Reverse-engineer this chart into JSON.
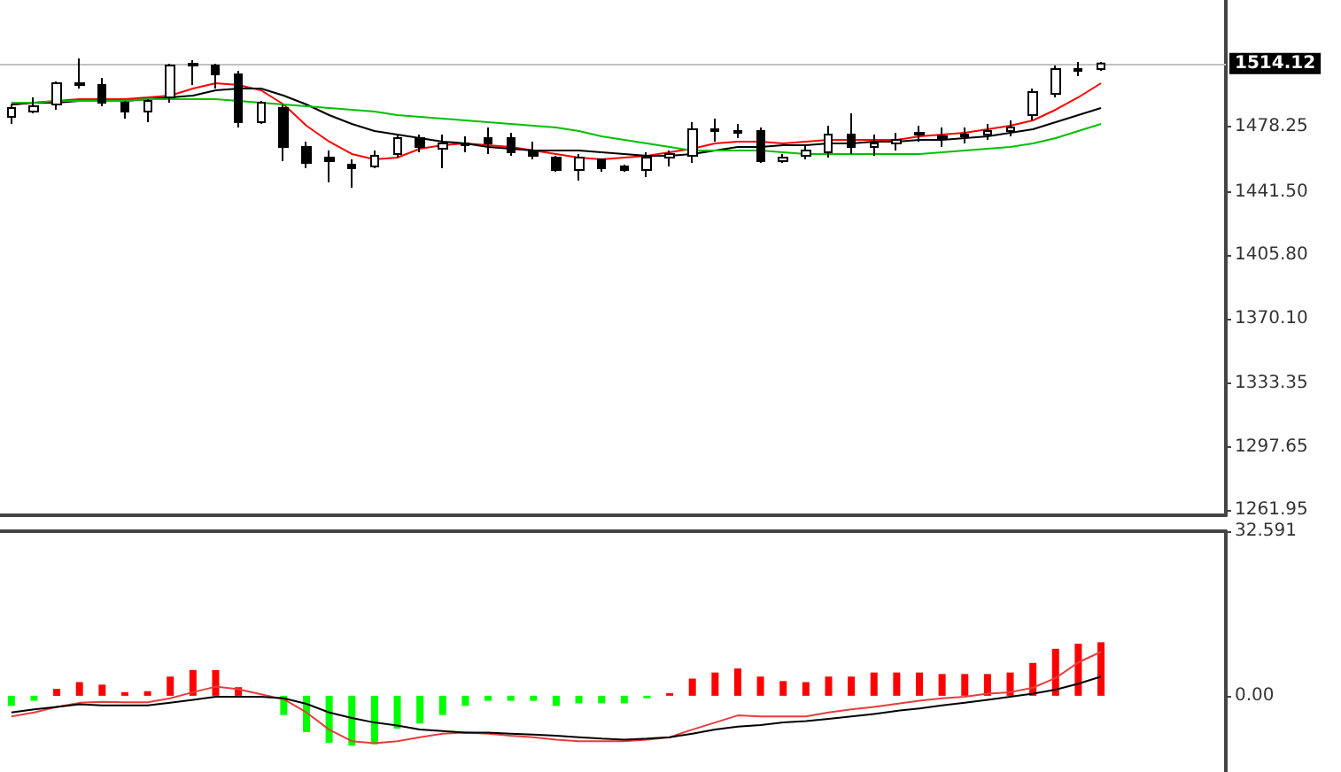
{
  "chart_data": [
    {
      "type": "candlestick",
      "categories": [
        null,
        null,
        null,
        null,
        null,
        null,
        null,
        null,
        null,
        null,
        null,
        null,
        null,
        null,
        null,
        null,
        null,
        null,
        null,
        null,
        null,
        null,
        null,
        null,
        null,
        null,
        null,
        null,
        null,
        null,
        null,
        null,
        null,
        null,
        null,
        null,
        null,
        null,
        null,
        null,
        null,
        null,
        null,
        null,
        null,
        null,
        null,
        null,
        null
      ],
      "ohlc": [
        [
          1484,
          1491,
          1480,
          1489
        ],
        [
          1487,
          1495,
          1486,
          1490
        ],
        [
          1491,
          1504,
          1488,
          1503
        ],
        [
          1503,
          1517,
          1500,
          1502
        ],
        [
          1502,
          1506,
          1490,
          1492
        ],
        [
          1492,
          1493,
          1483,
          1487
        ],
        [
          1487,
          1494,
          1481,
          1493
        ],
        [
          1495,
          1514,
          1492,
          1513
        ],
        [
          1513,
          1516,
          1502,
          1514
        ],
        [
          1513,
          1514,
          1500,
          1508
        ],
        [
          1508,
          1510,
          1478,
          1481
        ],
        [
          1481,
          1493,
          1480,
          1492
        ],
        [
          1489,
          1491,
          1459,
          1467
        ],
        [
          1467,
          1470,
          1455,
          1458
        ],
        [
          1461,
          1465,
          1447,
          1459
        ],
        [
          1457,
          1460,
          1444,
          1455
        ],
        [
          1456,
          1465,
          1455,
          1462
        ],
        [
          1463,
          1474,
          1461,
          1472
        ],
        [
          1472,
          1474,
          1464,
          1467
        ],
        [
          1466,
          1474,
          1455,
          1469
        ],
        [
          1468,
          1473,
          1464,
          1469
        ],
        [
          1472,
          1478,
          1463,
          1469
        ],
        [
          1472,
          1475,
          1462,
          1464
        ],
        [
          1465,
          1470,
          1460,
          1462
        ],
        [
          1461,
          1462,
          1453,
          1454
        ],
        [
          1454,
          1463,
          1448,
          1461
        ],
        [
          1460,
          1460,
          1453,
          1455
        ],
        [
          1456,
          1457,
          1453,
          1454
        ],
        [
          1454,
          1464,
          1450,
          1461
        ],
        [
          1461,
          1465,
          1456,
          1463
        ],
        [
          1462,
          1481,
          1458,
          1477
        ],
        [
          1476,
          1483,
          1470,
          1477
        ],
        [
          1476,
          1480,
          1472,
          1475
        ],
        [
          1476,
          1478,
          1458,
          1459
        ],
        [
          1459,
          1463,
          1458,
          1461
        ],
        [
          1462,
          1468,
          1460,
          1465
        ],
        [
          1464,
          1479,
          1461,
          1474
        ],
        [
          1474,
          1486,
          1463,
          1467
        ],
        [
          1467,
          1474,
          1462,
          1469
        ],
        [
          1469,
          1475,
          1465,
          1471
        ],
        [
          1474,
          1479,
          1470,
          1475
        ],
        [
          1472,
          1478,
          1467,
          1473
        ],
        [
          1473,
          1478,
          1469,
          1474
        ],
        [
          1474,
          1480,
          1471,
          1476
        ],
        [
          1476,
          1482,
          1473,
          1478
        ],
        [
          1485,
          1500,
          1482,
          1498
        ],
        [
          1497,
          1513,
          1495,
          1511
        ],
        [
          1510,
          1515,
          1507,
          1511
        ],
        [
          1511,
          1515,
          1510,
          1514.12
        ]
      ],
      "series": [
        {
          "type": "line",
          "color": "#ff0000",
          "values": [
            1491,
            1492,
            1493,
            1494,
            1494,
            1494,
            1495,
            1496,
            1500,
            1503,
            1502,
            1499,
            1491,
            1479,
            1470,
            1463,
            1460,
            1461,
            1466,
            1468,
            1469,
            1468,
            1467,
            1465,
            1463,
            1461,
            1460,
            1461,
            1462,
            1464,
            1466,
            1469,
            1470,
            1470,
            1469,
            1470,
            1471,
            1471,
            1471,
            1471,
            1473,
            1474,
            1475,
            1477,
            1479,
            1482,
            1488,
            1495,
            1503
          ]
        },
        {
          "type": "line",
          "color": "#000000",
          "values": [
            1491,
            1492,
            1492,
            1493,
            1493,
            1493,
            1494,
            1495,
            1496,
            1499,
            1500,
            1500,
            1496,
            1491,
            1485,
            1480,
            1476,
            1474,
            1472,
            1470,
            1469,
            1467,
            1466,
            1465,
            1465,
            1465,
            1464,
            1463,
            1462,
            1462,
            1463,
            1465,
            1467,
            1467,
            1468,
            1468,
            1469,
            1469,
            1470,
            1470,
            1471,
            1471,
            1472,
            1473,
            1475,
            1477,
            1481,
            1485,
            1489
          ]
        },
        {
          "type": "line",
          "color": "#00c000",
          "values": [
            1492,
            1492,
            1493,
            1493,
            1493,
            1493,
            1494,
            1494,
            1494,
            1494,
            1493,
            1492,
            1491,
            1490,
            1489,
            1488,
            1487,
            1485,
            1484,
            1483,
            1482,
            1481,
            1480,
            1479,
            1478,
            1476,
            1473,
            1471,
            1469,
            1467,
            1465,
            1465,
            1465,
            1465,
            1464,
            1463,
            1463,
            1463,
            1463,
            1463,
            1463,
            1464,
            1465,
            1466,
            1467,
            1469,
            1472,
            1476,
            1480
          ]
        }
      ],
      "ylim": [
        1259,
        1550
      ],
      "yticks": [
        1261.95,
        1297.65,
        1333.35,
        {
          "value": 1370.1,
          "label": "1370.10"
        },
        {
          "value": 1441.5,
          "label": "1441.50"
        },
        {
          "value": 1405.8,
          "label": "1405.80"
        },
        1478.25
      ],
      "ref_lines": [
        {
          "axis": "y",
          "value": 1514.12,
          "label": "1514.12",
          "color": "#c0c0c0"
        }
      ],
      "tick_labels": "y",
      "marker": "none"
    },
    {
      "type": "bar",
      "categories": [
        null,
        null,
        null,
        null,
        null,
        null,
        null,
        null,
        null,
        null,
        null,
        null,
        null,
        null,
        null,
        null,
        null,
        null,
        null,
        null,
        null,
        null,
        null,
        null,
        null,
        null,
        null,
        null,
        null,
        null,
        null,
        null,
        null,
        null,
        null,
        null,
        null,
        null,
        null,
        null,
        null,
        null,
        null,
        null,
        null,
        null,
        null,
        null,
        null
      ],
      "series": [
        {
          "values": [
            -2,
            -1,
            1.4,
            2.7,
            2.2,
            0.7,
            0.9,
            3.8,
            5.1,
            5.1,
            1.7,
            0,
            -3.8,
            -7.2,
            -9.3,
            -9.9,
            -9.6,
            -6.5,
            -5.5,
            -3.8,
            -2,
            -1,
            -1,
            -1,
            -2,
            -1.5,
            -1.5,
            -1.5,
            -0.5,
            0.5,
            3.4,
            4.6,
            5.4,
            3.8,
            2.9,
            2.7,
            3.8,
            3.8,
            4.6,
            4.6,
            4.6,
            4.3,
            4.3,
            4.3,
            4.6,
            6.5,
            9.3,
            10.3,
            10.6
          ],
          "colors": [
            "#00ff00",
            "#00ff00",
            "#ff0000",
            "#ff0000",
            "#ff0000",
            "#ff0000",
            "#ff0000",
            "#ff0000",
            "#ff0000",
            "#ff0000",
            "#ff0000",
            "#ff0000",
            "#00ff00",
            "#00ff00",
            "#00ff00",
            "#00ff00",
            "#00ff00",
            "#00ff00",
            "#00ff00",
            "#00ff00",
            "#00ff00",
            "#00ff00",
            "#00ff00",
            "#00ff00",
            "#00ff00",
            "#00ff00",
            "#00ff00",
            "#00ff00",
            "#00ff00",
            "#ff0000",
            "#ff0000",
            "#ff0000",
            "#ff0000",
            "#ff0000",
            "#ff0000",
            "#ff0000",
            "#ff0000",
            "#ff0000",
            "#ff0000",
            "#ff0000",
            "#ff0000",
            "#ff0000",
            "#ff0000",
            "#ff0000",
            "#ff0000",
            "#ff0000",
            "#ff0000",
            "#ff0000",
            "#ff0000"
          ]
        },
        {
          "type": "line",
          "color": "#e83c3c",
          "values": [
            -4.1,
            -3.3,
            -2.2,
            -1.4,
            -1.2,
            -1.3,
            -1.3,
            -0.5,
            0.7,
            1.8,
            1.3,
            0.3,
            -0.7,
            -3.3,
            -6.7,
            -9,
            -9.4,
            -9,
            -8.2,
            -7.5,
            -7.3,
            -7.5,
            -7.9,
            -8.2,
            -8.7,
            -9,
            -9,
            -9,
            -8.7,
            -8.2,
            -6.7,
            -5.3,
            -3.9,
            -4.1,
            -4.1,
            -4.1,
            -3.3,
            -2.7,
            -2.2,
            -1.6,
            -1,
            -0.5,
            -0.2,
            0.4,
            0.7,
            1.6,
            3.5,
            6.6,
            8.7
          ]
        },
        {
          "type": "line",
          "color": "#000000",
          "values": [
            -3.3,
            -2.7,
            -2.2,
            -1.7,
            -1.9,
            -1.9,
            -1.9,
            -1.4,
            -0.8,
            -0.2,
            -0.2,
            -0.2,
            -0.5,
            -1.6,
            -3.3,
            -4.4,
            -5.3,
            -5.9,
            -6.7,
            -7,
            -7.3,
            -7.3,
            -7.5,
            -7.7,
            -7.9,
            -8.2,
            -8.5,
            -8.7,
            -8.5,
            -8.2,
            -7.5,
            -6.7,
            -6.1,
            -5.8,
            -5.3,
            -5,
            -4.6,
            -4.1,
            -3.6,
            -3,
            -2.5,
            -1.9,
            -1.4,
            -0.8,
            -0.2,
            0.4,
            1.2,
            2.4,
            3.8
          ]
        }
      ],
      "ylim": [
        -15.1,
        32.591
      ],
      "yticks": [
        32.591,
        {
          "value": 0,
          "label": "0.00"
        }
      ],
      "tick_labels": "y",
      "marker": "none"
    }
  ]
}
